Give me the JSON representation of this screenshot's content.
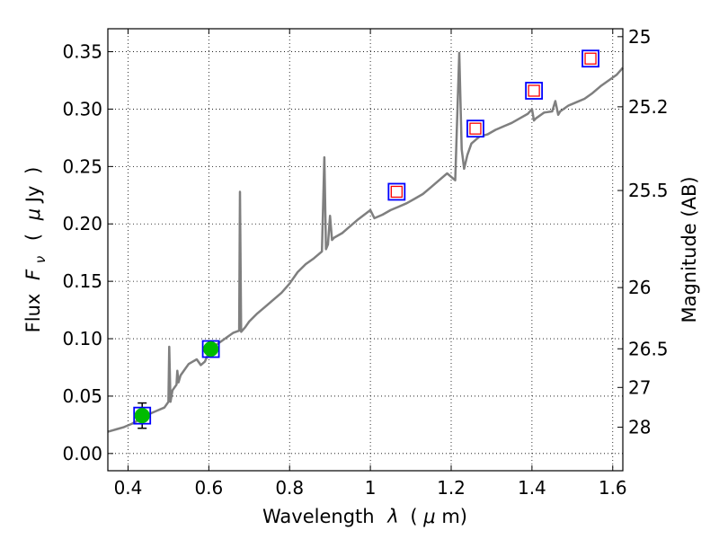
{
  "chart_data": {
    "type": "line",
    "xlabel_parts": [
      "Wavelength",
      "λ",
      "(",
      "μ",
      "m)"
    ],
    "ylabel_parts": [
      "Flux",
      "F",
      "ν",
      "(",
      "μ",
      "Jy",
      ")"
    ],
    "y2label": "Magnitude (AB)",
    "xlim": [
      0.35,
      1.625
    ],
    "ylim": [
      -0.015,
      0.37
    ],
    "x_ticks": [
      {
        "value": 0.4,
        "label": "0.4"
      },
      {
        "value": 0.6,
        "label": "0.6"
      },
      {
        "value": 0.8,
        "label": "0.8"
      },
      {
        "value": 1.0,
        "label": "1"
      },
      {
        "value": 1.2,
        "label": "1.2"
      },
      {
        "value": 1.4,
        "label": "1.4"
      },
      {
        "value": 1.6,
        "label": "1.6"
      }
    ],
    "y_ticks": [
      {
        "value": 0.0,
        "label": "0.00"
      },
      {
        "value": 0.05,
        "label": "0.05"
      },
      {
        "value": 0.1,
        "label": "0.10"
      },
      {
        "value": 0.15,
        "label": "0.15"
      },
      {
        "value": 0.2,
        "label": "0.20"
      },
      {
        "value": 0.25,
        "label": "0.25"
      },
      {
        "value": 0.3,
        "label": "0.30"
      },
      {
        "value": 0.35,
        "label": "0.35"
      }
    ],
    "y2_ticks": [
      {
        "mag": 25,
        "label": "25"
      },
      {
        "mag": 25.2,
        "label": "25.2"
      },
      {
        "mag": 25.5,
        "label": "25.5"
      },
      {
        "mag": 26,
        "label": "26"
      },
      {
        "mag": 26.5,
        "label": "26.5"
      },
      {
        "mag": 27,
        "label": "27"
      },
      {
        "mag": 28,
        "label": "28"
      }
    ],
    "grid": true,
    "colors": {
      "spectrum": "#7f7f7f",
      "detection_fill": "#00bb00",
      "box_edge": "#0000ff",
      "inner_square": "#ff0000",
      "errorbar": "#000000"
    },
    "series": [
      {
        "kind": "spectrum",
        "x": [
          0.35,
          0.37,
          0.39,
          0.41,
          0.43,
          0.45,
          0.47,
          0.49,
          0.5,
          0.502,
          0.505,
          0.51,
          0.52,
          0.522,
          0.525,
          0.53,
          0.54,
          0.55,
          0.56,
          0.57,
          0.58,
          0.59,
          0.6,
          0.62,
          0.64,
          0.66,
          0.675,
          0.677,
          0.68,
          0.69,
          0.7,
          0.72,
          0.74,
          0.76,
          0.78,
          0.8,
          0.82,
          0.84,
          0.86,
          0.88,
          0.886,
          0.89,
          0.895,
          0.9,
          0.905,
          0.91,
          0.93,
          0.95,
          0.97,
          1.0,
          1.01,
          1.03,
          1.05,
          1.07,
          1.09,
          1.11,
          1.13,
          1.15,
          1.17,
          1.19,
          1.21,
          1.22,
          1.226,
          1.232,
          1.24,
          1.25,
          1.27,
          1.29,
          1.31,
          1.33,
          1.35,
          1.37,
          1.39,
          1.4,
          1.405,
          1.41,
          1.43,
          1.45,
          1.458,
          1.465,
          1.47,
          1.49,
          1.51,
          1.53,
          1.55,
          1.57,
          1.59,
          1.61,
          1.625
        ],
        "y": [
          0.019,
          0.021,
          0.023,
          0.026,
          0.03,
          0.034,
          0.037,
          0.04,
          0.045,
          0.093,
          0.045,
          0.055,
          0.06,
          0.072,
          0.062,
          0.068,
          0.073,
          0.078,
          0.08,
          0.082,
          0.077,
          0.08,
          0.088,
          0.095,
          0.1,
          0.105,
          0.107,
          0.228,
          0.106,
          0.11,
          0.115,
          0.122,
          0.128,
          0.134,
          0.14,
          0.148,
          0.158,
          0.165,
          0.17,
          0.176,
          0.258,
          0.178,
          0.182,
          0.207,
          0.186,
          0.188,
          0.192,
          0.198,
          0.204,
          0.212,
          0.205,
          0.208,
          0.212,
          0.215,
          0.218,
          0.222,
          0.226,
          0.232,
          0.238,
          0.244,
          0.238,
          0.349,
          0.265,
          0.248,
          0.26,
          0.27,
          0.276,
          0.278,
          0.282,
          0.285,
          0.288,
          0.292,
          0.296,
          0.3,
          0.29,
          0.292,
          0.297,
          0.298,
          0.307,
          0.295,
          0.298,
          0.303,
          0.306,
          0.309,
          0.314,
          0.32,
          0.325,
          0.33,
          0.336
        ]
      },
      {
        "kind": "photometry",
        "points": [
          {
            "x": 0.435,
            "y": 0.033,
            "yerr": 0.011,
            "filled": true
          },
          {
            "x": 0.605,
            "y": 0.091,
            "yerr": 0.0,
            "filled": true
          },
          {
            "x": 1.065,
            "y": 0.228,
            "filled": false
          },
          {
            "x": 1.26,
            "y": 0.283,
            "filled": false
          },
          {
            "x": 1.405,
            "y": 0.316,
            "filled": false
          },
          {
            "x": 1.545,
            "y": 0.344,
            "filled": false
          }
        ]
      }
    ]
  }
}
